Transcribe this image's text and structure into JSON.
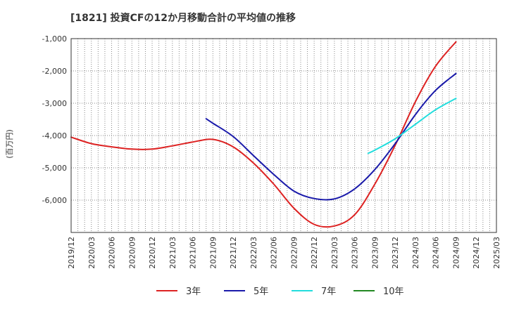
{
  "chart_data": {
    "type": "line",
    "title": "[1821]  投資CFの12か月移動合計の平均値の推移",
    "ylabel": "(百万円)",
    "xlabel": "",
    "ylim": [
      -7000,
      -1000
    ],
    "y_ticks": [
      -1000,
      -2000,
      -3000,
      -4000,
      -5000,
      -6000
    ],
    "y_tick_labels": [
      "-1,000",
      "-2,000",
      "-3,000",
      "-4,000",
      "-5,000",
      "-6,000"
    ],
    "x_tick_labels": [
      "2019/12",
      "2020/03",
      "2020/06",
      "2020/09",
      "2020/12",
      "2021/03",
      "2021/06",
      "2021/09",
      "2021/12",
      "2022/03",
      "2022/06",
      "2022/09",
      "2022/12",
      "2023/03",
      "2023/06",
      "2023/09",
      "2023/12",
      "2024/03",
      "2024/06",
      "2024/09",
      "2024/12",
      "2025/03"
    ],
    "grid": true,
    "legend_position": "bottom",
    "series": [
      {
        "name": "3年",
        "color": "#dd2222",
        "x": [
          "2019/12",
          "2020/03",
          "2020/06",
          "2020/09",
          "2020/12",
          "2021/03",
          "2021/06",
          "2021/09",
          "2021/12",
          "2022/03",
          "2022/06",
          "2022/09",
          "2022/12",
          "2023/03",
          "2023/06",
          "2023/09",
          "2023/12",
          "2024/03",
          "2024/06",
          "2024/09"
        ],
        "values": [
          -4050,
          -4250,
          -4350,
          -4420,
          -4420,
          -4320,
          -4200,
          -4120,
          -4350,
          -4850,
          -5500,
          -6250,
          -6750,
          -6800,
          -6450,
          -5500,
          -4300,
          -2950,
          -1850,
          -1100
        ]
      },
      {
        "name": "5年",
        "color": "#1a1aaa",
        "x": [
          "2021/08",
          "2021/09",
          "2021/12",
          "2022/03",
          "2022/06",
          "2022/09",
          "2022/12",
          "2023/03",
          "2023/06",
          "2023/09",
          "2023/12",
          "2024/03",
          "2024/06",
          "2024/09"
        ],
        "values": [
          -3480,
          -3620,
          -4030,
          -4620,
          -5200,
          -5720,
          -5950,
          -5960,
          -5650,
          -5050,
          -4250,
          -3350,
          -2600,
          -2080
        ]
      },
      {
        "name": "7年",
        "color": "#22dddd",
        "x": [
          "2023/08",
          "2023/09",
          "2023/12",
          "2024/03",
          "2024/06",
          "2024/09"
        ],
        "values": [
          -4550,
          -4450,
          -4100,
          -3650,
          -3200,
          -2850
        ]
      },
      {
        "name": "10年",
        "color": "#228822",
        "x": [],
        "values": []
      }
    ]
  }
}
